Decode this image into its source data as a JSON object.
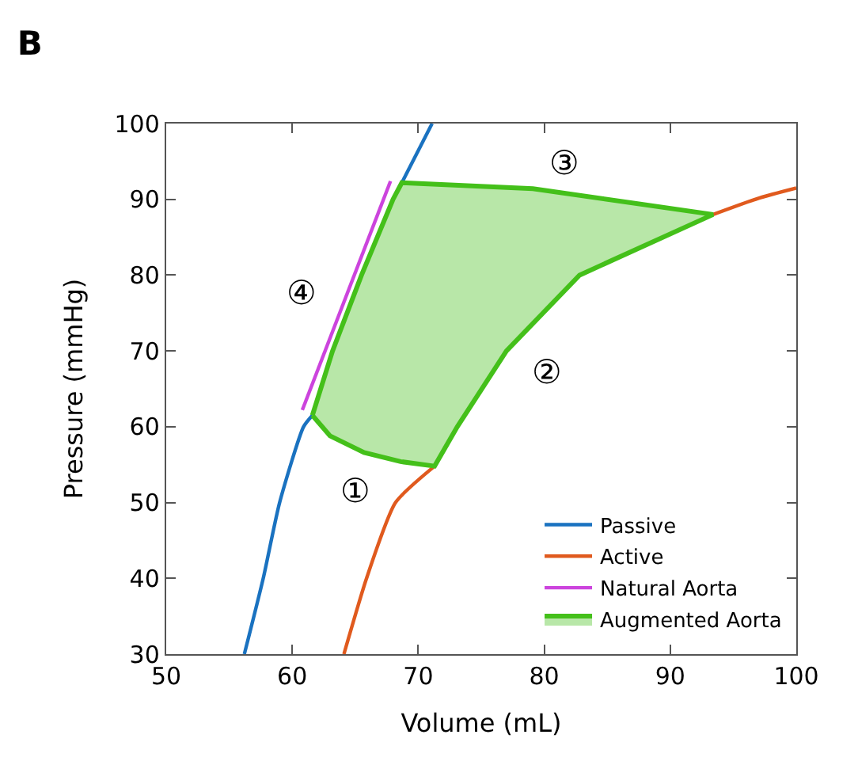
{
  "chart_data": {
    "type": "line",
    "title": "B",
    "xlabel": "Volume (mL)",
    "ylabel": "Pressure (mmHg)",
    "xlim": [
      50,
      100
    ],
    "xticks": [
      50,
      60,
      70,
      80,
      90,
      100
    ],
    "ylim": [
      30,
      100
    ],
    "yticks": [
      30,
      40,
      50,
      60,
      70,
      80,
      90,
      100
    ],
    "legend": "bottom right",
    "marker": "none",
    "line_style": "solid",
    "series": [
      {
        "name": "Passive",
        "color": "#1a72c0",
        "x": [
          56.2,
          57.7,
          59.0,
          60.9,
          61.6,
          63.2,
          65.5,
          68.0,
          68.7,
          71.1
        ],
        "values": [
          30,
          40,
          50,
          60,
          61.5,
          null,
          null,
          null,
          92.2,
          100
        ]
      },
      {
        "name": "Active",
        "color": "#e05a1e",
        "x": [
          64.1,
          65.9,
          68.2,
          71.3,
          73.1,
          77.0,
          82.8,
          93.4,
          97.1,
          100
        ],
        "values": [
          30,
          40,
          50,
          54.8,
          null,
          null,
          null,
          88,
          90.2,
          91.5
        ]
      },
      {
        "name": "Natural Aorta",
        "color": "#cc44dd",
        "x": [
          60.8,
          67.8
        ],
        "values": [
          62.2,
          92.4
        ]
      },
      {
        "name": "Augmented Aorta",
        "color": "#44c01a",
        "type": "area",
        "x": [
          61.6,
          63.2,
          65.5,
          68.0,
          68.7,
          79.1,
          93.4,
          82.8,
          77.0,
          73.1,
          71.3,
          68.6,
          65.7,
          63.0,
          61.6
        ],
        "values": [
          61.5,
          70,
          80,
          90,
          92.2,
          91.4,
          88,
          80,
          70,
          60,
          54.8,
          55.4,
          56.6,
          58.8,
          61.5
        ]
      }
    ],
    "annotations": [
      {
        "text": "①",
        "x": 65.7,
        "y": 56.6
      },
      {
        "text": "②",
        "x": 77.0,
        "y": 70
      },
      {
        "text": "③",
        "x": 79.1,
        "y": 91.4
      },
      {
        "text": "④",
        "x": 64.3,
        "y": 77.3
      }
    ]
  }
}
